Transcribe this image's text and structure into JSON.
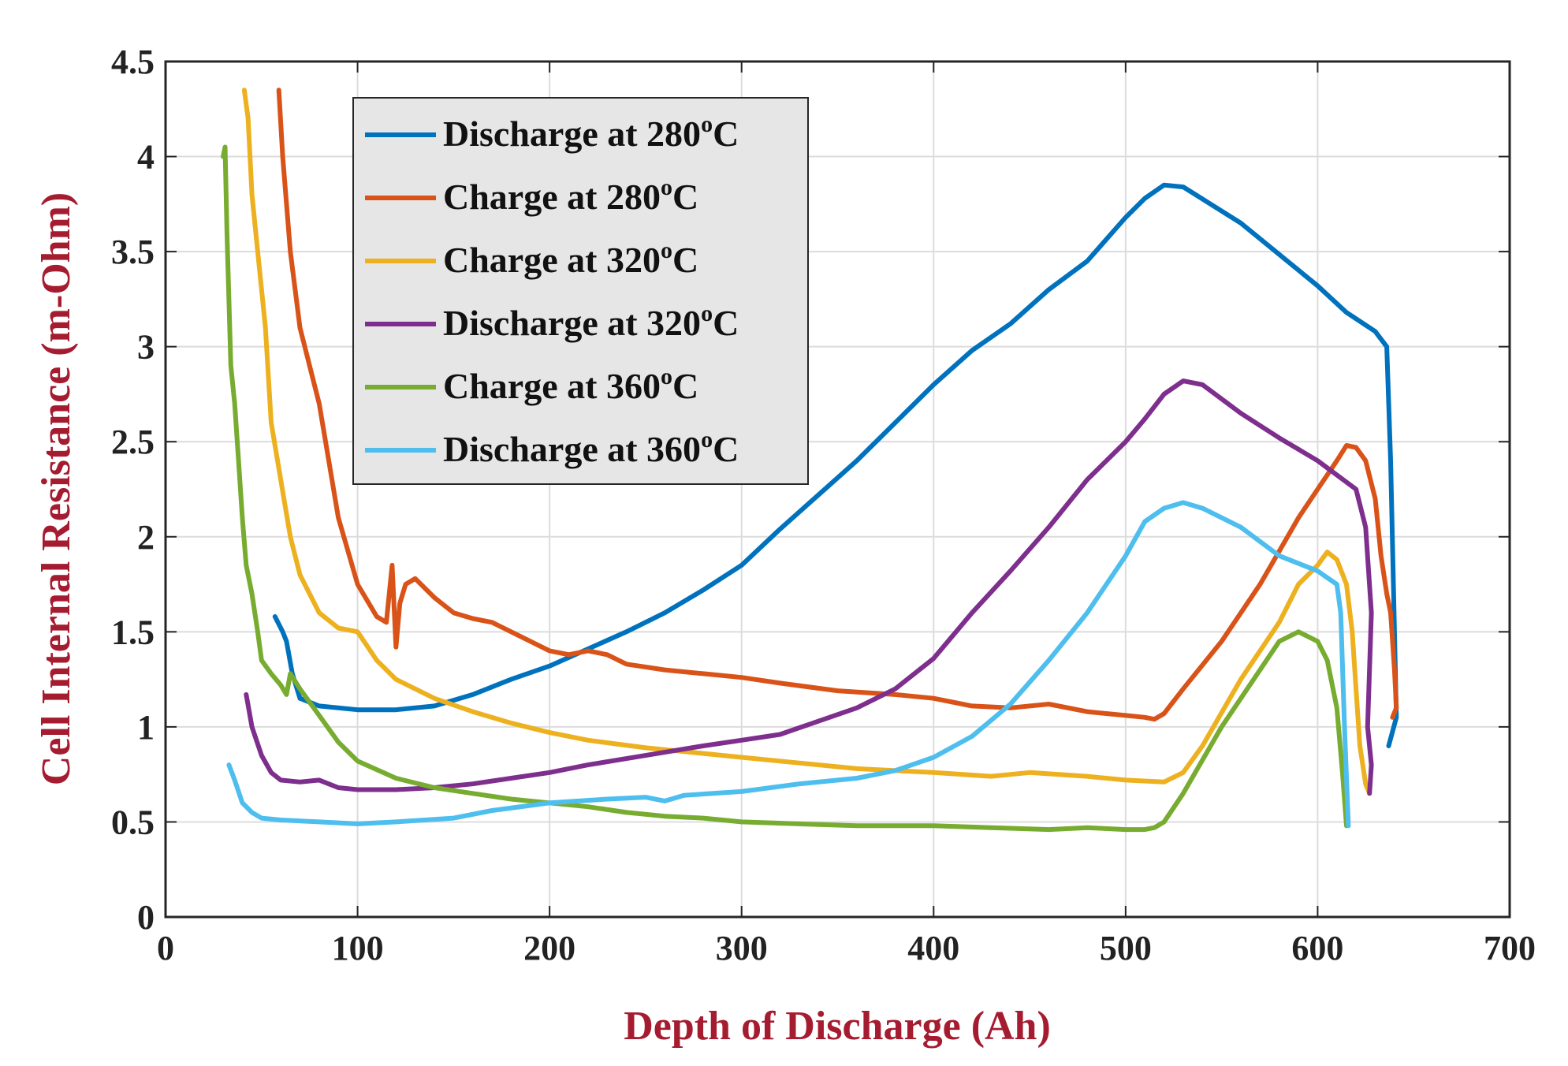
{
  "chart_data": {
    "type": "line",
    "xlabel": "Depth of Discharge (Ah)",
    "ylabel": "Cell Internal Resistance (m-Ohm)",
    "xlim": [
      0,
      700
    ],
    "ylim": [
      0,
      4.5
    ],
    "xticks": [
      "0",
      "100",
      "200",
      "300",
      "400",
      "500",
      "600",
      "700"
    ],
    "yticks": [
      "0",
      "0.5",
      "1",
      "1.5",
      "2",
      "2.5",
      "3",
      "3.5",
      "4",
      "4.5"
    ],
    "grid": true,
    "legend_position": "top-left",
    "series": [
      {
        "name": "Discharge at 280",
        "unit": "C",
        "color": "#0072bd",
        "x": [
          57,
          61,
          63,
          66,
          70,
          80,
          100,
          120,
          140,
          160,
          180,
          200,
          220,
          240,
          260,
          280,
          300,
          320,
          340,
          360,
          380,
          400,
          420,
          440,
          460,
          480,
          500,
          510,
          520,
          530,
          560,
          600,
          615,
          630,
          636,
          638,
          640,
          641,
          637
        ],
        "y": [
          1.58,
          1.5,
          1.45,
          1.28,
          1.15,
          1.11,
          1.09,
          1.09,
          1.11,
          1.17,
          1.25,
          1.32,
          1.41,
          1.5,
          1.6,
          1.72,
          1.85,
          2.04,
          2.22,
          2.4,
          2.6,
          2.8,
          2.98,
          3.12,
          3.3,
          3.45,
          3.68,
          3.78,
          3.85,
          3.84,
          3.65,
          3.32,
          3.18,
          3.08,
          3.0,
          2.4,
          1.5,
          1.05,
          0.9
        ]
      },
      {
        "name": "Charge at 280",
        "unit": "C",
        "color": "#d95319",
        "x": [
          59,
          61,
          65,
          70,
          80,
          90,
          100,
          110,
          115,
          118,
          120,
          122,
          125,
          130,
          140,
          150,
          160,
          170,
          180,
          200,
          210,
          220,
          230,
          240,
          260,
          280,
          300,
          320,
          350,
          380,
          400,
          420,
          440,
          460,
          480,
          500,
          510,
          515,
          520,
          530,
          550,
          570,
          590,
          600,
          610,
          615,
          620,
          625,
          630,
          633,
          636,
          638,
          640,
          641,
          639
        ],
        "y": [
          4.35,
          4.0,
          3.5,
          3.1,
          2.7,
          2.1,
          1.75,
          1.58,
          1.55,
          1.85,
          1.42,
          1.65,
          1.75,
          1.78,
          1.68,
          1.6,
          1.57,
          1.55,
          1.5,
          1.4,
          1.38,
          1.4,
          1.38,
          1.33,
          1.3,
          1.28,
          1.26,
          1.23,
          1.19,
          1.17,
          1.15,
          1.11,
          1.1,
          1.12,
          1.08,
          1.06,
          1.05,
          1.04,
          1.07,
          1.2,
          1.45,
          1.75,
          2.1,
          2.25,
          2.4,
          2.48,
          2.47,
          2.4,
          2.2,
          1.9,
          1.7,
          1.6,
          1.3,
          1.1,
          1.05
        ]
      },
      {
        "name": "Charge at 320",
        "unit": "C",
        "color": "#edb120",
        "x": [
          41,
          43,
          45,
          48,
          52,
          55,
          60,
          65,
          70,
          80,
          90,
          100,
          110,
          120,
          140,
          160,
          180,
          200,
          220,
          250,
          280,
          300,
          330,
          360,
          400,
          430,
          450,
          480,
          500,
          520,
          530,
          540,
          560,
          580,
          590,
          600,
          605,
          610,
          615,
          618,
          620,
          622,
          625,
          627
        ],
        "y": [
          4.35,
          4.2,
          3.8,
          3.5,
          3.1,
          2.6,
          2.3,
          2.0,
          1.8,
          1.6,
          1.52,
          1.5,
          1.35,
          1.25,
          1.15,
          1.08,
          1.02,
          0.97,
          0.93,
          0.89,
          0.86,
          0.84,
          0.81,
          0.78,
          0.76,
          0.74,
          0.76,
          0.74,
          0.72,
          0.71,
          0.76,
          0.9,
          1.25,
          1.55,
          1.75,
          1.85,
          1.92,
          1.88,
          1.75,
          1.5,
          1.2,
          0.9,
          0.7,
          0.65
        ]
      },
      {
        "name": "Discharge at 320",
        "unit": "C",
        "color": "#7e2f8e",
        "x": [
          42,
          45,
          50,
          55,
          60,
          70,
          80,
          90,
          100,
          120,
          140,
          160,
          180,
          200,
          220,
          250,
          280,
          300,
          320,
          340,
          360,
          380,
          400,
          420,
          440,
          460,
          480,
          500,
          510,
          520,
          530,
          540,
          560,
          580,
          600,
          620,
          625,
          628,
          626,
          628,
          627
        ],
        "y": [
          1.17,
          1.0,
          0.85,
          0.76,
          0.72,
          0.71,
          0.72,
          0.68,
          0.67,
          0.67,
          0.68,
          0.7,
          0.73,
          0.76,
          0.8,
          0.85,
          0.9,
          0.93,
          0.96,
          1.03,
          1.1,
          1.2,
          1.36,
          1.6,
          1.82,
          2.05,
          2.3,
          2.5,
          2.62,
          2.75,
          2.82,
          2.8,
          2.65,
          2.52,
          2.4,
          2.25,
          2.05,
          1.6,
          1.0,
          0.8,
          0.65
        ]
      },
      {
        "name": "Charge at 360",
        "unit": "C",
        "color": "#77ac30",
        "x": [
          30,
          31,
          32,
          34,
          36,
          38,
          40,
          42,
          45,
          48,
          50,
          55,
          60,
          63,
          65,
          70,
          80,
          90,
          100,
          120,
          140,
          160,
          180,
          200,
          220,
          240,
          260,
          280,
          300,
          330,
          360,
          400,
          430,
          460,
          480,
          500,
          510,
          515,
          520,
          530,
          550,
          570,
          580,
          590,
          600,
          605,
          610,
          613,
          615
        ],
        "y": [
          4.0,
          4.05,
          3.6,
          2.9,
          2.7,
          2.4,
          2.1,
          1.85,
          1.7,
          1.5,
          1.35,
          1.28,
          1.22,
          1.17,
          1.28,
          1.2,
          1.06,
          0.92,
          0.82,
          0.73,
          0.68,
          0.65,
          0.62,
          0.6,
          0.58,
          0.55,
          0.53,
          0.52,
          0.5,
          0.49,
          0.48,
          0.48,
          0.47,
          0.46,
          0.47,
          0.46,
          0.46,
          0.47,
          0.5,
          0.65,
          1.0,
          1.3,
          1.45,
          1.5,
          1.45,
          1.35,
          1.1,
          0.75,
          0.48
        ]
      },
      {
        "name": "Discharge at 360",
        "unit": "C",
        "color": "#4dbeee",
        "x": [
          33,
          36,
          40,
          45,
          50,
          60,
          80,
          100,
          120,
          150,
          170,
          200,
          230,
          250,
          260,
          270,
          300,
          330,
          360,
          380,
          400,
          420,
          440,
          460,
          480,
          500,
          510,
          520,
          530,
          540,
          560,
          580,
          600,
          610,
          612,
          614,
          616
        ],
        "y": [
          0.8,
          0.72,
          0.6,
          0.55,
          0.52,
          0.51,
          0.5,
          0.49,
          0.5,
          0.52,
          0.56,
          0.6,
          0.62,
          0.63,
          0.61,
          0.64,
          0.66,
          0.7,
          0.73,
          0.77,
          0.84,
          0.95,
          1.12,
          1.35,
          1.6,
          1.9,
          2.08,
          2.15,
          2.18,
          2.15,
          2.05,
          1.9,
          1.82,
          1.75,
          1.6,
          1.0,
          0.48
        ]
      }
    ]
  }
}
